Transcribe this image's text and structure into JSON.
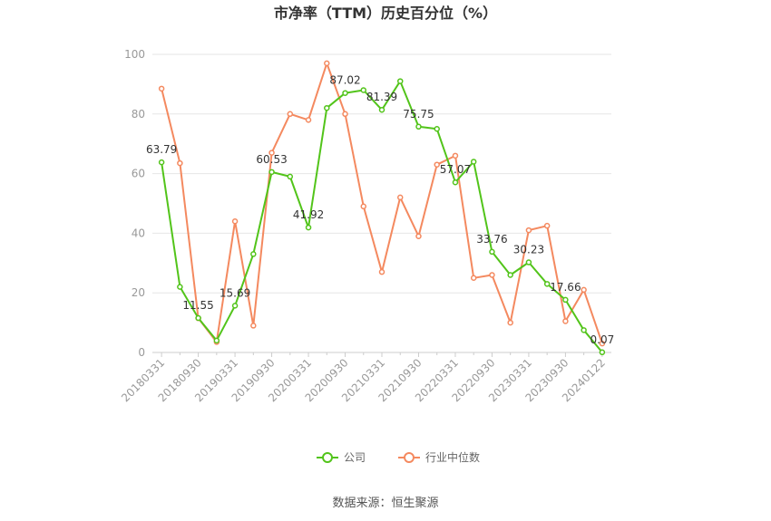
{
  "chart_data": {
    "type": "line",
    "title": "市净率（TTM）历史百分位（%）",
    "xlabel": "",
    "ylabel": "",
    "ylim": [
      0,
      100
    ],
    "yticks": [
      0,
      20,
      40,
      60,
      80,
      100
    ],
    "grid": true,
    "legend_position": "bottom",
    "x": [
      "20180331",
      "20180630",
      "20180930",
      "20181231",
      "20190331",
      "20190630",
      "20190930",
      "20191231",
      "20200331",
      "20200630",
      "20200930",
      "20201231",
      "20210331",
      "20210630",
      "20210930",
      "20211231",
      "20220331",
      "20220630",
      "20220930",
      "20221231",
      "20230331",
      "20230630",
      "20230930",
      "20231231",
      "20240122"
    ],
    "x_tick_labels": [
      "20180331",
      "20180930",
      "20190331",
      "20190930",
      "20200331",
      "20200930",
      "20210331",
      "20210930",
      "20220331",
      "20220930",
      "20230331",
      "20230930",
      "20240122"
    ],
    "series": [
      {
        "name": "公司",
        "color": "#52c41a",
        "values": [
          63.79,
          22,
          11.55,
          4,
          15.69,
          33,
          60.53,
          59,
          41.92,
          82,
          87.02,
          88,
          81.39,
          91,
          75.75,
          75,
          57.07,
          64,
          33.76,
          26,
          30.23,
          23,
          17.66,
          7.5,
          0.07
        ],
        "labeled_values": [
          "63.79",
          "",
          "11.55",
          "",
          "15.69",
          "",
          "60.53",
          "",
          "41.92",
          "",
          "87.02",
          "",
          "81.39",
          "",
          "75.75",
          "",
          "57.07",
          "",
          "33.76",
          "",
          "30.23",
          "",
          "17.66",
          "",
          "0.07"
        ]
      },
      {
        "name": "行业中位数",
        "color": "#f4895f",
        "values": [
          88.5,
          63.5,
          11.5,
          3.5,
          44,
          9,
          67,
          80,
          78,
          97,
          80,
          49,
          27,
          52,
          39,
          63,
          66,
          25,
          26,
          10,
          41,
          42.5,
          10.5,
          21,
          3
        ]
      }
    ]
  },
  "source_text": "数据来源：恒生聚源"
}
